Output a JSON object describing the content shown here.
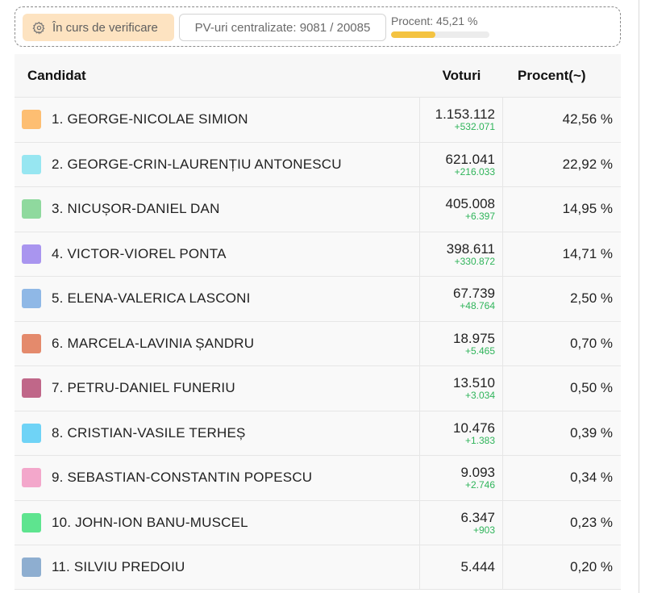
{
  "status": {
    "badge_label": "În curs de verificare",
    "badge_icon": "gear-icon",
    "centralized_label": "PV-uri centralizate: 9081 / 20085",
    "progress_label": "Procent: 45,21 %",
    "progress_value": 45.21,
    "progress_color": "#f4c341"
  },
  "table": {
    "headers": {
      "candidate": "Candidat",
      "votes": "Voturi",
      "percent": "Procent(~)"
    },
    "rows": [
      {
        "name": "1. GEORGE-NICOLAE SIMION",
        "votes": "1.153.112",
        "delta": "+532.071",
        "percent": "42,56 %",
        "color": "#fdbe72"
      },
      {
        "name": "2. GEORGE-CRIN-LAURENȚIU ANTONESCU",
        "votes": "621.041",
        "delta": "+216.033",
        "percent": "22,92 %",
        "color": "#97e6f1"
      },
      {
        "name": "3. NICUȘOR-DANIEL DAN",
        "votes": "405.008",
        "delta": "+6.397",
        "percent": "14,95 %",
        "color": "#8fd99e"
      },
      {
        "name": "4. VICTOR-VIOREL PONTA",
        "votes": "398.611",
        "delta": "+330.872",
        "percent": "14,71 %",
        "color": "#a995ef"
      },
      {
        "name": "5. ELENA-VALERICA LASCONI",
        "votes": "67.739",
        "delta": "+48.764",
        "percent": "2,50 %",
        "color": "#8fb8e6"
      },
      {
        "name": "6. MARCELA-LAVINIA ȘANDRU",
        "votes": "18.975",
        "delta": "+5.465",
        "percent": "0,70 %",
        "color": "#e48a6c"
      },
      {
        "name": "7. PETRU-DANIEL FUNERIU",
        "votes": "13.510",
        "delta": "+3.034",
        "percent": "0,50 %",
        "color": "#c06789"
      },
      {
        "name": "8. CRISTIAN-VASILE TERHEȘ",
        "votes": "10.476",
        "delta": "+1.383",
        "percent": "0,39 %",
        "color": "#6fd3f6"
      },
      {
        "name": "9. SEBASTIAN-CONSTANTIN POPESCU",
        "votes": "9.093",
        "delta": "+2.746",
        "percent": "0,34 %",
        "color": "#f3a7cb"
      },
      {
        "name": "10. JOHN-ION BANU-MUSCEL",
        "votes": "6.347",
        "delta": "+903",
        "percent": "0,23 %",
        "color": "#5ee48f"
      },
      {
        "name": "11. SILVIU PREDOIU",
        "votes": "5.444",
        "delta": "",
        "percent": "0,20 %",
        "color": "#8eaed0"
      }
    ]
  }
}
